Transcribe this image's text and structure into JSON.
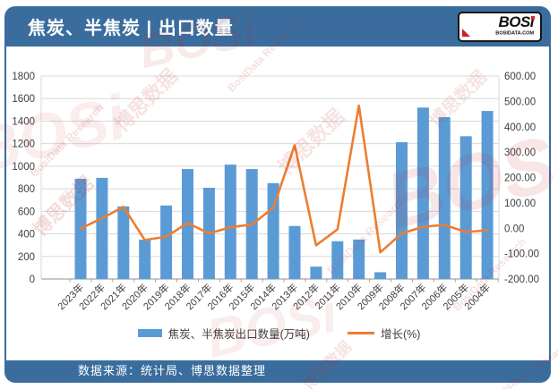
{
  "header": {
    "title": "焦炭、半焦炭 | 出口数量",
    "logo": {
      "name": "BOSi",
      "domain": "BOSIDATA.COM"
    }
  },
  "footer": {
    "source": "数据来源：统计局、博思数据整理"
  },
  "legend": {
    "bars": "焦炭、半焦炭出口数量(万吨)",
    "line": "增长(%)"
  },
  "watermark": {
    "cn": "博思数据",
    "en": "BosiData Research",
    "logo": "BOSi"
  },
  "colors": {
    "frame": "#3A6D9E",
    "bar": "#5B9BD5",
    "line": "#ED7D31",
    "grid": "#D9D9D9",
    "axis_text": "#404040",
    "watermark": "#C22525"
  },
  "chart_data": {
    "type": "bar",
    "title": "焦炭、半焦炭 | 出口数量",
    "categories": [
      "2023年",
      "2022年",
      "2021年",
      "2020年",
      "2019年",
      "2018年",
      "2017年",
      "2016年",
      "2015年",
      "2014年",
      "2013年",
      "2012年",
      "2011年",
      "2010年",
      "2009年",
      "2008年",
      "2007年",
      "2006年",
      "2005年",
      "2004年"
    ],
    "series": [
      {
        "name": "焦炭、半焦炭出口数量(万吨)",
        "type": "bar",
        "axis": "left",
        "values": [
          889,
          897,
          644,
          349,
          652,
          975,
          809,
          1014,
          975,
          850,
          470,
          110,
          335,
          350,
          60,
          1213,
          1520,
          1435,
          1266,
          1490
        ]
      },
      {
        "name": "增长(%)",
        "type": "line",
        "axis": "right",
        "values": [
          -0.9,
          39.3,
          84.5,
          -46.5,
          -33.1,
          20.5,
          -20.2,
          4.0,
          14.7,
          80.9,
          327.3,
          -67.2,
          -4.3,
          483.3,
          -95.1,
          -20.2,
          5.9,
          13.3,
          -15.0,
          -8.0
        ]
      }
    ],
    "left_axis": {
      "min": 0,
      "max": 1800,
      "step": 200,
      "unit": "万吨"
    },
    "right_axis": {
      "min": -200,
      "max": 600,
      "step": 100,
      "format": "two-decimals"
    },
    "grid": true,
    "legend_position": "bottom",
    "xlabel_rotation": -45
  }
}
